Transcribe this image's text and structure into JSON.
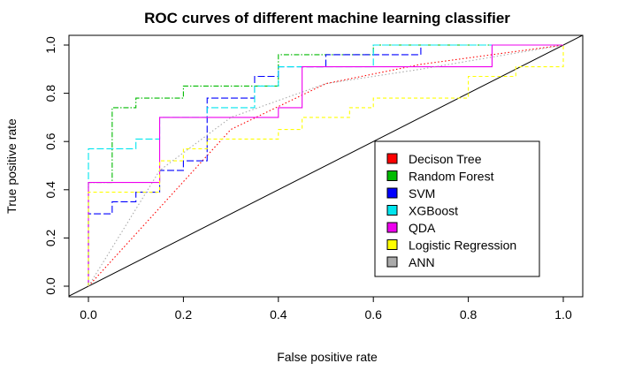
{
  "chart_data": {
    "type": "line",
    "title": "ROC curves of different machine learning classifier",
    "xlabel": "False positive rate",
    "ylabel": "True positive rate",
    "xlim": [
      0,
      1
    ],
    "ylim": [
      0,
      1
    ],
    "xticks": [
      "0.0",
      "0.2",
      "0.4",
      "0.6",
      "0.8",
      "1.0"
    ],
    "yticks": [
      "0.0",
      "0.2",
      "0.4",
      "0.6",
      "0.8",
      "1.0"
    ],
    "grid": false,
    "legend_position": "lower-right",
    "diagonal_reference": true,
    "series": [
      {
        "name": "Decison Tree",
        "color": "#ff0000",
        "dash": "dotted",
        "x": [
          0,
          0.3,
          0.5,
          0.7,
          1.0
        ],
        "y": [
          0,
          0.65,
          0.84,
          0.92,
          1.0
        ]
      },
      {
        "name": "Random Forest",
        "color": "#00bb00",
        "dash": "dashdot",
        "x": [
          0,
          0,
          0.05,
          0.05,
          0.1,
          0.1,
          0.2,
          0.2,
          0.4,
          0.4,
          0.6,
          0.6,
          1.0
        ],
        "y": [
          0,
          0.43,
          0.43,
          0.74,
          0.74,
          0.78,
          0.78,
          0.83,
          0.83,
          0.96,
          0.96,
          1.0,
          1.0
        ]
      },
      {
        "name": "SVM",
        "color": "#0000ff",
        "dash": "longdash",
        "x": [
          0,
          0,
          0.05,
          0.05,
          0.1,
          0.1,
          0.15,
          0.15,
          0.2,
          0.2,
          0.25,
          0.25,
          0.35,
          0.35,
          0.4,
          0.4,
          0.5,
          0.5,
          0.7,
          0.7,
          1.0
        ],
        "y": [
          0,
          0.3,
          0.3,
          0.35,
          0.35,
          0.39,
          0.39,
          0.48,
          0.48,
          0.52,
          0.52,
          0.78,
          0.78,
          0.87,
          0.87,
          0.91,
          0.91,
          0.96,
          0.96,
          1.0,
          1.0
        ]
      },
      {
        "name": "XGBoost",
        "color": "#00e5ee",
        "dash": "longdash",
        "x": [
          0,
          0,
          0.05,
          0.05,
          0.1,
          0.1,
          0.15,
          0.15,
          0.25,
          0.25,
          0.35,
          0.35,
          0.4,
          0.4,
          0.6,
          0.6,
          1.0
        ],
        "y": [
          0,
          0.57,
          0.57,
          0.57,
          0.57,
          0.61,
          0.61,
          0.7,
          0.7,
          0.74,
          0.74,
          0.83,
          0.83,
          0.91,
          0.91,
          1.0,
          1.0
        ]
      },
      {
        "name": "QDA",
        "color": "#ee00ee",
        "dash": "solid",
        "x": [
          0,
          0,
          0.15,
          0.15,
          0.4,
          0.4,
          0.45,
          0.45,
          0.85,
          0.85,
          1.0
        ],
        "y": [
          0,
          0.43,
          0.43,
          0.7,
          0.7,
          0.74,
          0.74,
          0.91,
          0.91,
          1.0,
          1.0
        ]
      },
      {
        "name": "Logistic Regression",
        "color": "#ffff00",
        "dash": "dashed",
        "x": [
          0,
          0,
          0.15,
          0.15,
          0.2,
          0.2,
          0.25,
          0.25,
          0.4,
          0.4,
          0.45,
          0.45,
          0.55,
          0.55,
          0.6,
          0.6,
          0.8,
          0.8,
          0.9,
          0.9,
          1.0,
          1.0
        ],
        "y": [
          0,
          0.39,
          0.39,
          0.52,
          0.52,
          0.57,
          0.57,
          0.61,
          0.61,
          0.65,
          0.65,
          0.7,
          0.7,
          0.74,
          0.74,
          0.78,
          0.78,
          0.87,
          0.87,
          0.91,
          0.91,
          1.0
        ]
      },
      {
        "name": "ANN",
        "color": "#aaaaaa",
        "dash": "dotted",
        "x": [
          0,
          0.15,
          0.3,
          0.5,
          0.7,
          1.0
        ],
        "y": [
          0,
          0.48,
          0.7,
          0.84,
          0.9,
          1.0
        ]
      }
    ]
  }
}
